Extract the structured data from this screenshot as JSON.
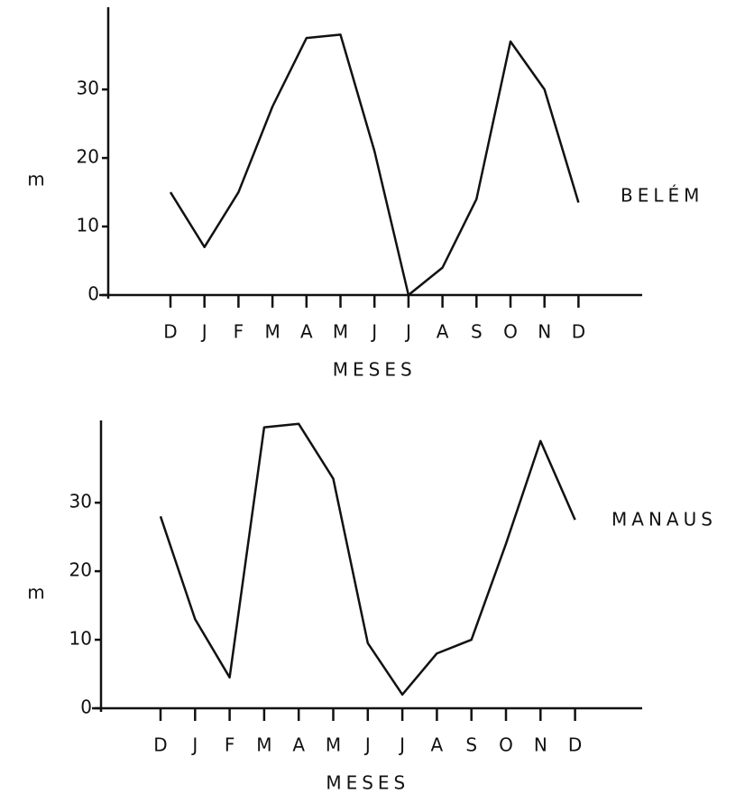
{
  "chart_data": [
    {
      "type": "line",
      "categories": [
        "D",
        "J",
        "F",
        "M",
        "A",
        "M",
        "J",
        "J",
        "A",
        "S",
        "O",
        "N",
        "D"
      ],
      "series": [
        {
          "name": "BELÉM",
          "color": "#111111",
          "values": [
            15,
            7,
            15,
            27.5,
            37.5,
            38,
            21,
            0,
            4,
            14,
            37,
            30,
            13.5
          ]
        }
      ],
      "x_label": "MESES",
      "y_label": "m",
      "ylim": [
        0,
        42
      ],
      "yticks": [
        0,
        10,
        20,
        30
      ]
    },
    {
      "type": "line",
      "categories": [
        "D",
        "J",
        "F",
        "M",
        "A",
        "M",
        "J",
        "J",
        "A",
        "S",
        "O",
        "N",
        "D"
      ],
      "series": [
        {
          "name": "MANAUS",
          "color": "#111111",
          "values": [
            28,
            13,
            4.5,
            41,
            41.5,
            33.5,
            9.5,
            2,
            8,
            10,
            24,
            39,
            27.5
          ]
        }
      ],
      "x_label": "MESES",
      "y_label": "m",
      "ylim": [
        0,
        42
      ],
      "yticks": [
        0,
        10,
        20,
        30
      ]
    }
  ]
}
